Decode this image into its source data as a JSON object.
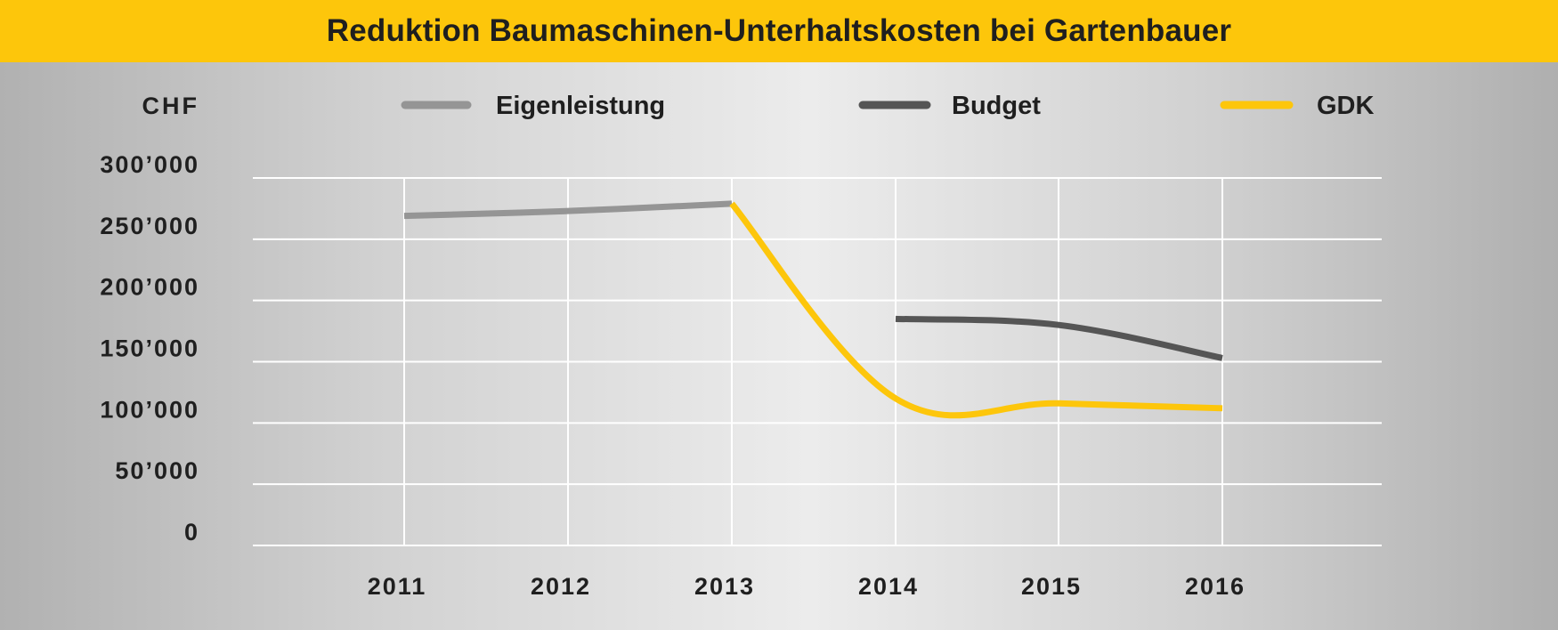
{
  "chart_data": {
    "type": "line",
    "title": "Reduktion Baumaschinen-Unterhaltskosten bei Gartenbauer",
    "ylabel": "CHF",
    "xlabel": "",
    "ylim": [
      0,
      300000
    ],
    "grid": true,
    "legend_position": "top",
    "x": [
      "2011",
      "2012",
      "2013",
      "2014",
      "2015",
      "2016"
    ],
    "y_ticks": [
      0,
      50000,
      100000,
      150000,
      200000,
      250000,
      300000
    ],
    "y_tick_labels": [
      "0",
      "50’000",
      "100’000",
      "150’000",
      "200’000",
      "250’000",
      "300’000"
    ],
    "series": [
      {
        "name": "Eigenleistung",
        "color": "#959595",
        "values": [
          269000,
          273000,
          279000,
          null,
          null,
          null
        ]
      },
      {
        "name": "Budget",
        "color": "#555555",
        "values": [
          null,
          null,
          null,
          185000,
          180000,
          153000
        ]
      },
      {
        "name": "GDK",
        "color": "#fdc60b",
        "values": [
          null,
          null,
          279000,
          120000,
          116000,
          112000
        ]
      }
    ]
  }
}
